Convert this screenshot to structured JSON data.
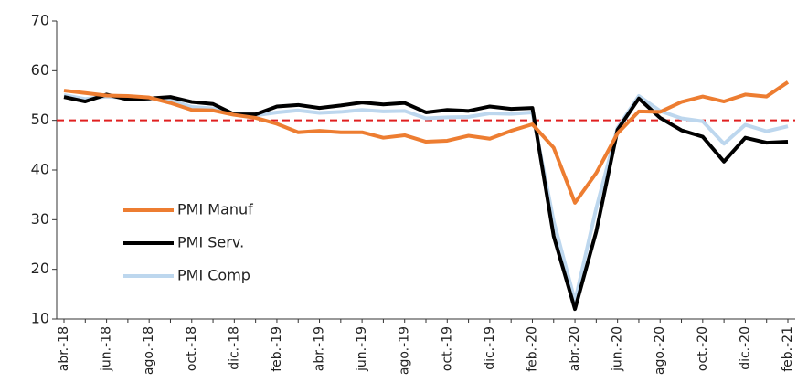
{
  "chart_data": {
    "type": "line",
    "categories": [
      "abr.-18",
      null,
      "jun.-18",
      null,
      "ago.-18",
      null,
      "oct.-18",
      null,
      "dic.-18",
      null,
      "feb.-19",
      null,
      "abr.-19",
      null,
      "jun.-19",
      null,
      "ago.-19",
      null,
      "oct.-19",
      null,
      "dic.-19",
      null,
      "feb.-20",
      null,
      "abr.-20",
      null,
      "jun.-20",
      null,
      "ago.-20",
      null,
      "oct.-20",
      null,
      "dic.-20",
      null,
      "feb.-21"
    ],
    "series": [
      {
        "name": "PMI Manuf",
        "color": "#ed7d31",
        "values": [
          56,
          55.5,
          55,
          54.9,
          54.6,
          53.5,
          52.1,
          52,
          51.1,
          50.5,
          49.3,
          47.6,
          47.9,
          47.6,
          47.6,
          46.5,
          47,
          45.7,
          45.9,
          46.9,
          46.3,
          47.9,
          49.2,
          44.5,
          33.4,
          39.4,
          47.4,
          51.8,
          51.7,
          53.7,
          54.8,
          53.8,
          55.2,
          54.8,
          57.7
        ]
      },
      {
        "name": "PMI Serv.",
        "color": "#000000",
        "values": [
          54.7,
          53.8,
          55.2,
          54.2,
          54.4,
          54.7,
          53.7,
          53.3,
          51.2,
          51.2,
          52.8,
          53.1,
          52.5,
          53,
          53.6,
          53.2,
          53.5,
          51.6,
          52.1,
          51.9,
          52.8,
          52.3,
          52.5,
          26.7,
          12,
          27.6,
          48.1,
          54.4,
          50.5,
          48,
          46.7,
          41.7,
          46.5,
          45.5,
          45.7
        ]
      },
      {
        "name": "PMI Comp",
        "color": "#bdd7ee",
        "values": [
          55.1,
          54.3,
          54.8,
          54.5,
          54.4,
          54.1,
          52.7,
          52.4,
          51.3,
          51,
          51.6,
          52,
          51.5,
          51.7,
          52.1,
          51.8,
          51.9,
          50.4,
          50.6,
          50.7,
          51.4,
          51.3,
          51.6,
          29.7,
          13.6,
          32.3,
          48.5,
          54.9,
          51.9,
          50.4,
          49.8,
          45.3,
          49.1,
          47.8,
          48.8
        ]
      }
    ],
    "ylim": [
      10,
      70
    ],
    "yticks": [
      10,
      20,
      30,
      40,
      50,
      60,
      70
    ],
    "hline": {
      "value": 50,
      "color": "#e02020"
    },
    "legend": "left"
  }
}
